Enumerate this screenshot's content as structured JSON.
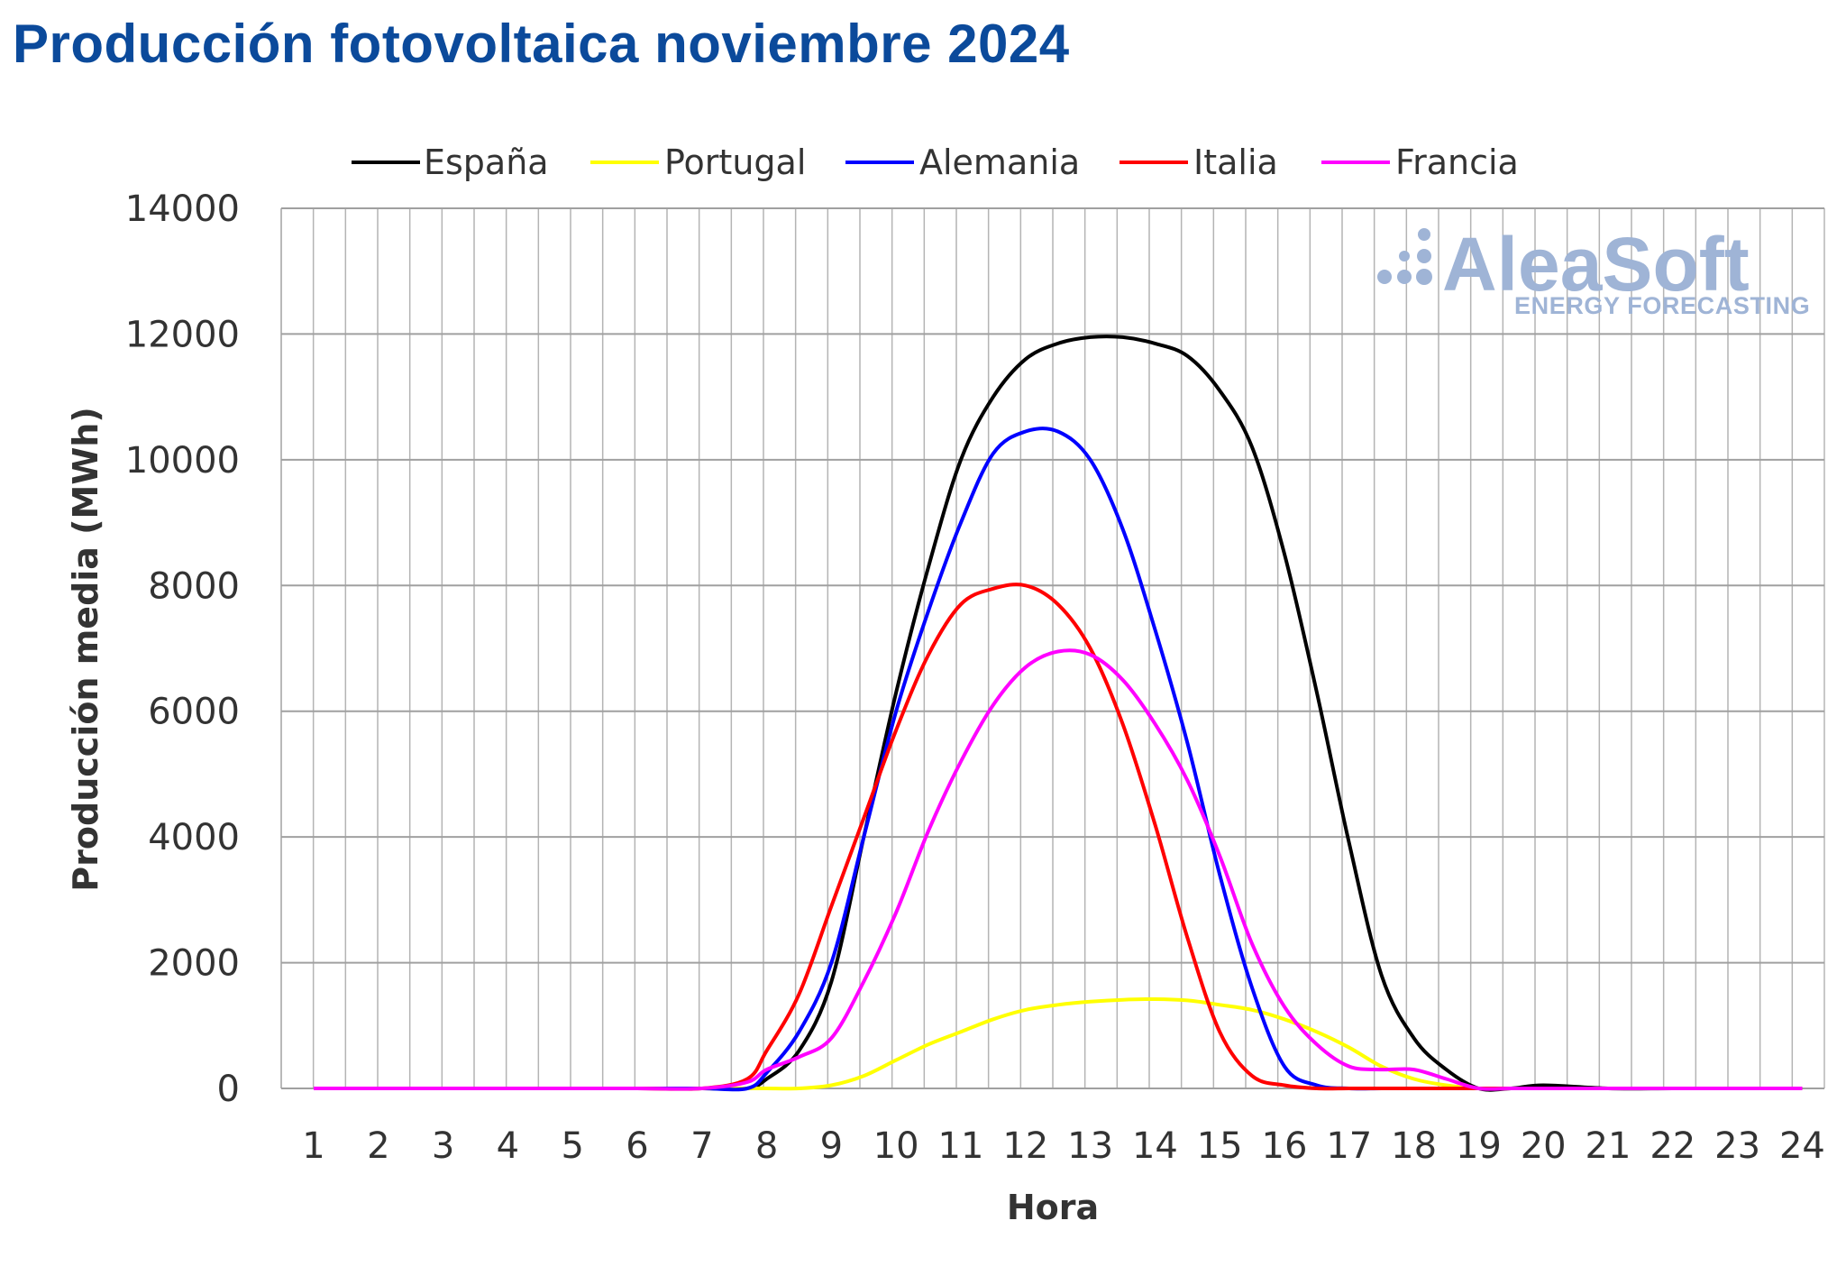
{
  "title": "Producción fotovoltaica noviembre 2024",
  "watermark": {
    "brand": "AleaSoft",
    "tagline": "ENERGY FORECASTING",
    "color": "#9fb4d6"
  },
  "chart_data": {
    "type": "line",
    "title": "Producción fotovoltaica noviembre 2024",
    "xlabel": "Hora",
    "ylabel": "Producción media (MWh)",
    "ylim": [
      0,
      14000
    ],
    "yticks": [
      0,
      2000,
      4000,
      6000,
      8000,
      10000,
      12000,
      14000
    ],
    "xlim": [
      1,
      24
    ],
    "x": [
      1,
      2,
      3,
      4,
      5,
      6,
      7,
      7.7,
      8,
      8.5,
      9,
      9.5,
      10,
      10.5,
      11,
      11.5,
      12,
      12.5,
      13,
      13.5,
      14,
      14.5,
      15,
      15.5,
      16,
      16.5,
      17,
      17.5,
      18,
      18.5,
      19,
      19.5,
      20,
      21,
      22,
      23,
      24
    ],
    "legend_position": "top",
    "grid": true,
    "series": [
      {
        "name": "España",
        "color": "#000000",
        "values": [
          0,
          0,
          0,
          0,
          0,
          0,
          0,
          0,
          150,
          600,
          1700,
          4000,
          6300,
          8300,
          10000,
          11000,
          11600,
          11850,
          11950,
          11950,
          11850,
          11650,
          11100,
          10200,
          8500,
          6300,
          3900,
          1800,
          800,
          300,
          0,
          0,
          50,
          0,
          0,
          0,
          0
        ]
      },
      {
        "name": "Portugal",
        "color": "#ffff00",
        "values": [
          0,
          0,
          0,
          0,
          0,
          0,
          0,
          0,
          0,
          0,
          50,
          200,
          450,
          700,
          900,
          1100,
          1250,
          1330,
          1380,
          1410,
          1420,
          1400,
          1330,
          1250,
          1100,
          900,
          650,
          350,
          150,
          50,
          0,
          0,
          0,
          0,
          0,
          0,
          0
        ]
      },
      {
        "name": "Alemania",
        "color": "#0000ff",
        "values": [
          0,
          0,
          0,
          0,
          0,
          0,
          0,
          0,
          250,
          900,
          2000,
          4000,
          6000,
          7600,
          9000,
          10100,
          10450,
          10450,
          10000,
          8900,
          7300,
          5500,
          3400,
          1600,
          350,
          50,
          0,
          0,
          0,
          0,
          0,
          0,
          0,
          0,
          0,
          0,
          0
        ]
      },
      {
        "name": "Italia",
        "color": "#ff0000",
        "values": [
          0,
          0,
          0,
          0,
          0,
          0,
          0,
          150,
          600,
          1500,
          2900,
          4300,
          5700,
          6900,
          7700,
          7950,
          8000,
          7700,
          7000,
          5800,
          4200,
          2400,
          900,
          200,
          50,
          0,
          0,
          0,
          0,
          0,
          0,
          0,
          0,
          0,
          0,
          0,
          0
        ]
      },
      {
        "name": "Francia",
        "color": "#ff00ff",
        "values": [
          0,
          0,
          0,
          0,
          0,
          0,
          0,
          100,
          300,
          500,
          800,
          1700,
          2800,
          4100,
          5200,
          6100,
          6700,
          6950,
          6900,
          6500,
          5800,
          4900,
          3700,
          2300,
          1300,
          700,
          350,
          300,
          300,
          150,
          0,
          0,
          0,
          0,
          0,
          0,
          0
        ]
      }
    ]
  }
}
